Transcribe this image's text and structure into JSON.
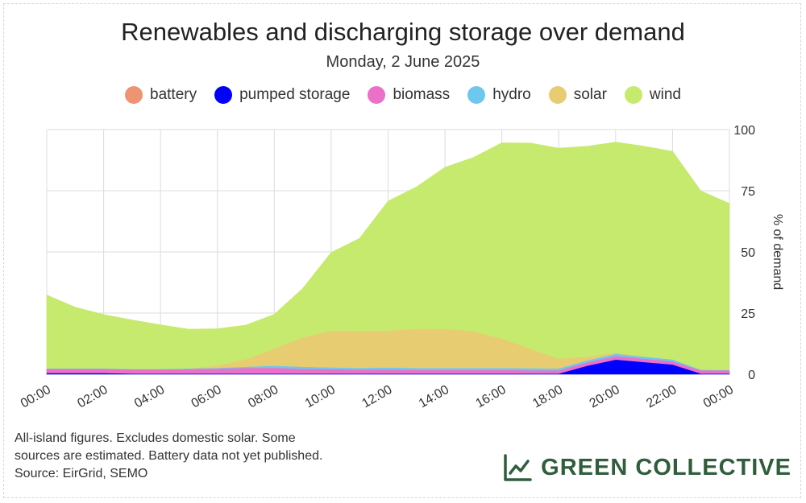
{
  "title": "Renewables and discharging storage over demand",
  "subtitle": "Monday, 2 June 2025",
  "legend": [
    {
      "label": "battery",
      "color": "#ee9473"
    },
    {
      "label": "pumped storage",
      "color": "#0000ff"
    },
    {
      "label": "biomass",
      "color": "#ea70c8"
    },
    {
      "label": "hydro",
      "color": "#6ec8ee"
    },
    {
      "label": "solar",
      "color": "#e8cc72"
    },
    {
      "label": "wind",
      "color": "#c6ea6e"
    }
  ],
  "footnote": [
    "All-island figures. Excludes domestic solar. Some",
    "sources are estimated. Battery data not yet published.",
    "Source: EirGrid, SEMO"
  ],
  "brand": {
    "name": "GREEN COLLECTIVE",
    "color": "#2f5e3c",
    "icon": "line-chart-icon"
  },
  "chart_data": {
    "type": "area",
    "stacked": true,
    "x_unit": "time of day",
    "x": [
      "00:00",
      "01:00",
      "02:00",
      "03:00",
      "04:00",
      "05:00",
      "06:00",
      "07:00",
      "08:00",
      "09:00",
      "10:00",
      "11:00",
      "12:00",
      "13:00",
      "14:00",
      "15:00",
      "16:00",
      "17:00",
      "18:00",
      "19:00",
      "20:00",
      "21:00",
      "22:00",
      "23:00",
      "24:00"
    ],
    "x_tick_labels": [
      "00:00",
      "02:00",
      "04:00",
      "06:00",
      "08:00",
      "10:00",
      "12:00",
      "14:00",
      "16:00",
      "18:00",
      "20:00",
      "22:00",
      "00:00"
    ],
    "ylabel": "% of demand",
    "ylim": [
      0,
      100
    ],
    "y_ticks": [
      0,
      25,
      50,
      75,
      100
    ],
    "grid": true,
    "y_axis_side": "right",
    "legend_position": "top",
    "series": [
      {
        "name": "pumped storage",
        "color": "#0000ff",
        "values": [
          0.5,
          0.5,
          0.5,
          0.3,
          0.3,
          0.3,
          0.3,
          0.3,
          0.3,
          0.3,
          0.3,
          0.3,
          0.3,
          0.3,
          0.3,
          0.3,
          0.3,
          0.3,
          0.3,
          3.5,
          6.0,
          5.0,
          4.0,
          0.3,
          0.3
        ]
      },
      {
        "name": "biomass",
        "color": "#ea70c8",
        "values": [
          1.7,
          1.7,
          1.7,
          1.7,
          1.7,
          1.8,
          2.0,
          2.3,
          2.4,
          1.9,
          1.8,
          1.6,
          1.6,
          1.5,
          1.5,
          1.5,
          1.5,
          1.3,
          1.3,
          1.4,
          1.5,
          1.4,
          1.3,
          1.3,
          1.3
        ]
      },
      {
        "name": "hydro",
        "color": "#6ec8ee",
        "values": [
          0.2,
          0.2,
          0.2,
          0.2,
          0.2,
          0.3,
          0.3,
          0.5,
          0.8,
          0.9,
          0.7,
          0.7,
          0.9,
          0.8,
          0.8,
          0.8,
          0.8,
          0.9,
          0.8,
          0.8,
          0.9,
          0.8,
          0.8,
          0.3,
          0.2
        ]
      },
      {
        "name": "solar",
        "color": "#e8cc72",
        "values": [
          0,
          0,
          0,
          0,
          0,
          0,
          1,
          3,
          7,
          12,
          15,
          15,
          15,
          16,
          16,
          15,
          12,
          8,
          4,
          1.5,
          0.5,
          0,
          0,
          0,
          0
        ]
      },
      {
        "name": "wind",
        "color": "#c6ea6e",
        "values": [
          30,
          25,
          22,
          20,
          18,
          16,
          15,
          14,
          14,
          20,
          32,
          38,
          53,
          58,
          66,
          71,
          80,
          84,
          86,
          86,
          86,
          86,
          85,
          73,
          68
        ]
      }
    ]
  }
}
